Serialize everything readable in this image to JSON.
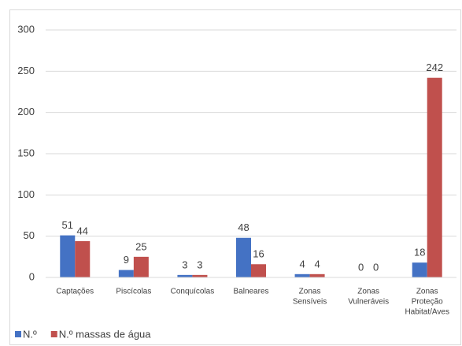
{
  "chart_data": {
    "type": "bar",
    "categories": [
      [
        "Captações"
      ],
      [
        "Piscícolas"
      ],
      [
        "Conquícolas"
      ],
      [
        "Balneares"
      ],
      [
        "Zonas",
        "Sensíveis"
      ],
      [
        "Zonas",
        "Vulneráveis"
      ],
      [
        "Zonas",
        "Proteção",
        "Habitat/Aves"
      ]
    ],
    "series": [
      {
        "name": "N.º",
        "color": "#4472c4",
        "values": [
          51,
          9,
          3,
          48,
          4,
          0,
          18
        ]
      },
      {
        "name": "N.º massas de água",
        "color": "#c0504d",
        "values": [
          44,
          25,
          3,
          16,
          4,
          0,
          242
        ]
      }
    ],
    "ylim": [
      0,
      300
    ],
    "yticks": [
      0,
      50,
      100,
      150,
      200,
      250,
      300
    ],
    "grid": true,
    "legend": "bottom-left"
  }
}
